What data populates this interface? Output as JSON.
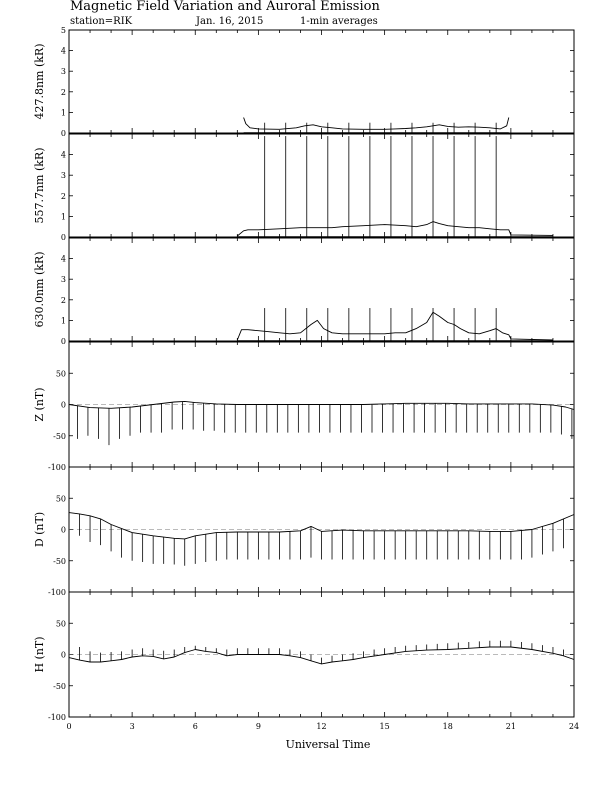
{
  "header": {
    "title": "Magnetic Field Variation and Auroral Emission",
    "station": "station=RIK",
    "date": "Jan. 16, 2015",
    "averaging": "1-min averages"
  },
  "chart_data": [
    {
      "type": "line",
      "ylabel": "427.8nm (kR)",
      "xlim": [
        0,
        24
      ],
      "ylim": [
        0,
        5
      ],
      "yticks": [
        0,
        1,
        2,
        3,
        4,
        5
      ],
      "night_window": [
        8.3,
        20.9
      ],
      "series": [
        {
          "x": [
            8.3,
            8.4,
            8.6,
            9.0,
            10.0,
            10.8,
            11.2,
            11.6,
            12.0,
            12.5,
            13.0,
            14.0,
            15.0,
            15.5,
            16.0,
            16.5,
            17.0,
            17.3,
            17.6,
            18.0,
            18.5,
            19.0,
            19.5,
            20.0,
            20.5,
            20.8,
            20.9
          ],
          "y": [
            0.75,
            0.45,
            0.25,
            0.2,
            0.18,
            0.25,
            0.35,
            0.4,
            0.3,
            0.25,
            0.2,
            0.18,
            0.18,
            0.2,
            0.22,
            0.25,
            0.3,
            0.35,
            0.4,
            0.32,
            0.28,
            0.3,
            0.28,
            0.25,
            0.2,
            0.35,
            0.75
          ]
        }
      ],
      "spikes": [
        {
          "x": 9.3,
          "y": 0.5
        },
        {
          "x": 10.3,
          "y": 0.5
        },
        {
          "x": 11.3,
          "y": 0.5
        },
        {
          "x": 12.3,
          "y": 0.5
        },
        {
          "x": 13.3,
          "y": 0.5
        },
        {
          "x": 14.3,
          "y": 0.5
        },
        {
          "x": 15.3,
          "y": 0.5
        },
        {
          "x": 16.3,
          "y": 0.5
        },
        {
          "x": 17.3,
          "y": 0.5
        },
        {
          "x": 18.3,
          "y": 0.5
        },
        {
          "x": 19.3,
          "y": 0.5
        },
        {
          "x": 20.3,
          "y": 0.5
        }
      ]
    },
    {
      "type": "line",
      "ylabel": "557.7nm (kR)",
      "xlim": [
        0,
        24
      ],
      "ylim": [
        0,
        5
      ],
      "yticks": [
        0,
        1,
        2,
        3,
        4
      ],
      "night_window": [
        8.0,
        23.0
      ],
      "series": [
        {
          "x": [
            8.0,
            8.3,
            8.5,
            9.0,
            10.0,
            11.0,
            12.0,
            12.5,
            13.0,
            14.0,
            15.0,
            16.0,
            16.5,
            17.0,
            17.3,
            17.6,
            18.0,
            18.5,
            19.0,
            19.5,
            20.0,
            20.5,
            20.9,
            21.0,
            23.0
          ],
          "y": [
            0.05,
            0.3,
            0.35,
            0.35,
            0.4,
            0.45,
            0.45,
            0.45,
            0.5,
            0.55,
            0.6,
            0.55,
            0.5,
            0.6,
            0.75,
            0.65,
            0.55,
            0.5,
            0.45,
            0.45,
            0.4,
            0.35,
            0.35,
            0.1,
            0.08
          ]
        }
      ],
      "spikes": [
        {
          "x": 9.3,
          "y": 4.9
        },
        {
          "x": 10.3,
          "y": 4.9
        },
        {
          "x": 11.3,
          "y": 4.9
        },
        {
          "x": 12.3,
          "y": 4.9
        },
        {
          "x": 13.3,
          "y": 4.9
        },
        {
          "x": 14.3,
          "y": 4.9
        },
        {
          "x": 15.3,
          "y": 4.9
        },
        {
          "x": 16.3,
          "y": 4.9
        },
        {
          "x": 17.3,
          "y": 4.9
        },
        {
          "x": 18.3,
          "y": 4.9
        },
        {
          "x": 19.3,
          "y": 4.9
        },
        {
          "x": 20.3,
          "y": 4.9
        }
      ]
    },
    {
      "type": "line",
      "ylabel": "630.0nm (kR)",
      "xlim": [
        0,
        24
      ],
      "ylim": [
        0,
        5
      ],
      "yticks": [
        0,
        1,
        2,
        3,
        4
      ],
      "night_window": [
        8.0,
        23.0
      ],
      "series": [
        {
          "x": [
            8.0,
            8.2,
            8.5,
            9.0,
            9.5,
            10.0,
            10.5,
            11.0,
            11.5,
            11.8,
            12.1,
            12.5,
            13.0,
            14.0,
            15.0,
            15.5,
            16.0,
            16.5,
            17.0,
            17.3,
            17.6,
            18.0,
            18.3,
            18.6,
            19.0,
            19.5,
            20.0,
            20.3,
            20.6,
            20.9,
            21.0,
            23.0
          ],
          "y": [
            0.05,
            0.55,
            0.55,
            0.5,
            0.45,
            0.4,
            0.35,
            0.4,
            0.8,
            1.0,
            0.6,
            0.4,
            0.35,
            0.35,
            0.35,
            0.4,
            0.4,
            0.6,
            0.9,
            1.4,
            1.2,
            0.9,
            0.8,
            0.6,
            0.4,
            0.35,
            0.5,
            0.6,
            0.4,
            0.3,
            0.1,
            0.05
          ]
        }
      ],
      "spikes": [
        {
          "x": 9.3,
          "y": 1.6
        },
        {
          "x": 10.3,
          "y": 1.6
        },
        {
          "x": 11.3,
          "y": 1.6
        },
        {
          "x": 12.3,
          "y": 1.6
        },
        {
          "x": 13.3,
          "y": 1.6
        },
        {
          "x": 14.3,
          "y": 1.6
        },
        {
          "x": 15.3,
          "y": 1.6
        },
        {
          "x": 16.3,
          "y": 1.6
        },
        {
          "x": 17.3,
          "y": 1.6
        },
        {
          "x": 18.3,
          "y": 1.6
        },
        {
          "x": 19.3,
          "y": 1.6
        },
        {
          "x": 20.3,
          "y": 1.6
        }
      ]
    },
    {
      "type": "line",
      "ylabel": "Z (nT)",
      "xlim": [
        0,
        24
      ],
      "ylim": [
        -100,
        100
      ],
      "yticks": [
        -100,
        -50,
        0,
        50
      ],
      "series": [
        {
          "x": [
            0,
            1,
            2,
            3,
            4,
            5,
            5.5,
            6,
            7,
            8,
            9,
            10,
            11,
            12,
            13,
            14,
            15,
            16,
            17,
            18,
            19,
            20,
            21,
            22,
            23,
            23.6,
            24
          ],
          "y": [
            0,
            -5,
            -6,
            -4,
            0,
            4,
            5,
            3,
            1,
            0,
            0,
            0,
            0,
            0,
            0,
            0,
            1,
            2,
            2,
            2,
            1,
            1,
            1,
            1,
            -1,
            -4,
            -8
          ]
        }
      ],
      "spikes": [
        {
          "x": 0.4,
          "y": -55
        },
        {
          "x": 0.9,
          "y": -50
        },
        {
          "x": 1.4,
          "y": -55
        },
        {
          "x": 1.9,
          "y": -65
        },
        {
          "x": 2.4,
          "y": -55
        },
        {
          "x": 2.9,
          "y": -50
        },
        {
          "x": 3.4,
          "y": -45
        },
        {
          "x": 3.9,
          "y": -45
        },
        {
          "x": 4.4,
          "y": -45
        },
        {
          "x": 4.9,
          "y": -40
        },
        {
          "x": 5.4,
          "y": -40
        },
        {
          "x": 5.9,
          "y": -40
        },
        {
          "x": 6.4,
          "y": -42
        },
        {
          "x": 6.9,
          "y": -42
        },
        {
          "x": 7.4,
          "y": -45
        },
        {
          "x": 7.9,
          "y": -45
        },
        {
          "x": 8.4,
          "y": -45
        },
        {
          "x": 8.9,
          "y": -45
        },
        {
          "x": 9.4,
          "y": -45
        },
        {
          "x": 9.9,
          "y": -45
        },
        {
          "x": 10.4,
          "y": -45
        },
        {
          "x": 10.9,
          "y": -45
        },
        {
          "x": 11.4,
          "y": -45
        },
        {
          "x": 11.9,
          "y": -45
        },
        {
          "x": 12.4,
          "y": -45
        },
        {
          "x": 12.9,
          "y": -45
        },
        {
          "x": 13.4,
          "y": -45
        },
        {
          "x": 13.9,
          "y": -45
        },
        {
          "x": 14.4,
          "y": -45
        },
        {
          "x": 14.9,
          "y": -45
        },
        {
          "x": 15.4,
          "y": -45
        },
        {
          "x": 15.9,
          "y": -45
        },
        {
          "x": 16.4,
          "y": -45
        },
        {
          "x": 16.9,
          "y": -45
        },
        {
          "x": 17.4,
          "y": -45
        },
        {
          "x": 17.9,
          "y": -45
        },
        {
          "x": 18.4,
          "y": -45
        },
        {
          "x": 18.9,
          "y": -45
        },
        {
          "x": 19.4,
          "y": -45
        },
        {
          "x": 19.9,
          "y": -45
        },
        {
          "x": 20.4,
          "y": -45
        },
        {
          "x": 20.9,
          "y": -45
        },
        {
          "x": 21.4,
          "y": -45
        },
        {
          "x": 21.9,
          "y": -45
        },
        {
          "x": 22.4,
          "y": -45
        },
        {
          "x": 22.9,
          "y": -45
        },
        {
          "x": 23.4,
          "y": -48
        },
        {
          "x": 23.9,
          "y": -55
        }
      ]
    },
    {
      "type": "line",
      "ylabel": "D (nT)",
      "xlim": [
        0,
        24
      ],
      "ylim": [
        -100,
        100
      ],
      "yticks": [
        -100,
        -50,
        0,
        50
      ],
      "series": [
        {
          "x": [
            0,
            0.5,
            1,
            1.5,
            2,
            3,
            4,
            5,
            5.5,
            6,
            7,
            8,
            9,
            10,
            11,
            11.5,
            12,
            13,
            14,
            15,
            16,
            17,
            18,
            19,
            20,
            21,
            22,
            23,
            24
          ],
          "y": [
            27,
            25,
            22,
            17,
            8,
            -5,
            -10,
            -14,
            -15,
            -10,
            -5,
            -4,
            -4,
            -4,
            -2,
            5,
            -3,
            -1,
            -2,
            -2,
            -2,
            -2,
            -2,
            -2,
            -3,
            -3,
            0,
            10,
            24
          ]
        }
      ],
      "spikes": [
        {
          "x": 0.5,
          "y": -10
        },
        {
          "x": 1.0,
          "y": -20
        },
        {
          "x": 1.5,
          "y": -25
        },
        {
          "x": 2.0,
          "y": -35
        },
        {
          "x": 2.5,
          "y": -45
        },
        {
          "x": 3.0,
          "y": -50
        },
        {
          "x": 3.5,
          "y": -52
        },
        {
          "x": 4.0,
          "y": -55
        },
        {
          "x": 4.5,
          "y": -55
        },
        {
          "x": 5.0,
          "y": -56
        },
        {
          "x": 5.5,
          "y": -58
        },
        {
          "x": 6.0,
          "y": -55
        },
        {
          "x": 6.5,
          "y": -52
        },
        {
          "x": 7.0,
          "y": -50
        },
        {
          "x": 7.5,
          "y": -48
        },
        {
          "x": 8.0,
          "y": -48
        },
        {
          "x": 8.5,
          "y": -48
        },
        {
          "x": 9.0,
          "y": -48
        },
        {
          "x": 9.5,
          "y": -48
        },
        {
          "x": 10.0,
          "y": -48
        },
        {
          "x": 10.5,
          "y": -48
        },
        {
          "x": 11.0,
          "y": -48
        },
        {
          "x": 11.5,
          "y": -45
        },
        {
          "x": 12.0,
          "y": -48
        },
        {
          "x": 12.5,
          "y": -48
        },
        {
          "x": 13.0,
          "y": -48
        },
        {
          "x": 13.5,
          "y": -48
        },
        {
          "x": 14.0,
          "y": -48
        },
        {
          "x": 14.5,
          "y": -48
        },
        {
          "x": 15.0,
          "y": -48
        },
        {
          "x": 15.5,
          "y": -48
        },
        {
          "x": 16.0,
          "y": -48
        },
        {
          "x": 16.5,
          "y": -48
        },
        {
          "x": 17.0,
          "y": -48
        },
        {
          "x": 17.5,
          "y": -48
        },
        {
          "x": 18.0,
          "y": -48
        },
        {
          "x": 18.5,
          "y": -48
        },
        {
          "x": 19.0,
          "y": -48
        },
        {
          "x": 19.5,
          "y": -48
        },
        {
          "x": 20.0,
          "y": -48
        },
        {
          "x": 20.5,
          "y": -48
        },
        {
          "x": 21.0,
          "y": -48
        },
        {
          "x": 21.5,
          "y": -48
        },
        {
          "x": 22.0,
          "y": -45
        },
        {
          "x": 22.5,
          "y": -40
        },
        {
          "x": 23.0,
          "y": -35
        },
        {
          "x": 23.5,
          "y": -30
        }
      ]
    },
    {
      "type": "line",
      "ylabel": "H (nT)",
      "xlim": [
        0,
        24
      ],
      "ylim": [
        -100,
        100
      ],
      "yticks": [
        -100,
        -50,
        0,
        50
      ],
      "series": [
        {
          "x": [
            0,
            0.5,
            1,
            1.5,
            2,
            2.5,
            3,
            3.5,
            4,
            4.5,
            5,
            5.5,
            6,
            6.5,
            7,
            7.5,
            8,
            9,
            10,
            10.5,
            11,
            11.5,
            12,
            12.5,
            13,
            13.5,
            14,
            15,
            16,
            17,
            18,
            19,
            20,
            21,
            22,
            23,
            23.5,
            24
          ],
          "y": [
            -5,
            -9,
            -12,
            -12,
            -10,
            -8,
            -4,
            -2,
            -3,
            -7,
            -4,
            3,
            8,
            5,
            3,
            -2,
            0,
            0,
            0,
            -2,
            -5,
            -10,
            -15,
            -12,
            -10,
            -8,
            -5,
            0,
            5,
            7,
            8,
            10,
            12,
            12,
            8,
            2,
            -2,
            -8
          ]
        }
      ],
      "spikes": [
        {
          "x": 0.5,
          "y": 12
        },
        {
          "x": 1.0,
          "y": 5
        },
        {
          "x": 1.5,
          "y": 3
        },
        {
          "x": 2.0,
          "y": 4
        },
        {
          "x": 2.5,
          "y": 5
        },
        {
          "x": 3.0,
          "y": 8
        },
        {
          "x": 3.5,
          "y": 10
        },
        {
          "x": 4.0,
          "y": 8
        },
        {
          "x": 4.5,
          "y": 6
        },
        {
          "x": 5.0,
          "y": 8
        },
        {
          "x": 5.5,
          "y": 12
        },
        {
          "x": 6.0,
          "y": 14
        },
        {
          "x": 6.5,
          "y": 12
        },
        {
          "x": 7.0,
          "y": 10
        },
        {
          "x": 7.5,
          "y": 8
        },
        {
          "x": 8.0,
          "y": 10
        },
        {
          "x": 8.5,
          "y": 10
        },
        {
          "x": 9.0,
          "y": 10
        },
        {
          "x": 9.5,
          "y": 10
        },
        {
          "x": 10.0,
          "y": 10
        },
        {
          "x": 10.5,
          "y": 8
        },
        {
          "x": 11.0,
          "y": 5
        },
        {
          "x": 11.5,
          "y": 0
        },
        {
          "x": 12.0,
          "y": -5
        },
        {
          "x": 12.5,
          "y": -2
        },
        {
          "x": 13.0,
          "y": 0
        },
        {
          "x": 13.5,
          "y": 2
        },
        {
          "x": 14.0,
          "y": 5
        },
        {
          "x": 14.5,
          "y": 8
        },
        {
          "x": 15.0,
          "y": 10
        },
        {
          "x": 15.5,
          "y": 12
        },
        {
          "x": 16.0,
          "y": 14
        },
        {
          "x": 16.5,
          "y": 15
        },
        {
          "x": 17.0,
          "y": 16
        },
        {
          "x": 17.5,
          "y": 17
        },
        {
          "x": 18.0,
          "y": 18
        },
        {
          "x": 18.5,
          "y": 19
        },
        {
          "x": 19.0,
          "y": 20
        },
        {
          "x": 19.5,
          "y": 21
        },
        {
          "x": 20.0,
          "y": 22
        },
        {
          "x": 20.5,
          "y": 22
        },
        {
          "x": 21.0,
          "y": 22
        },
        {
          "x": 21.5,
          "y": 20
        },
        {
          "x": 22.0,
          "y": 18
        },
        {
          "x": 22.5,
          "y": 15
        },
        {
          "x": 23.0,
          "y": 12
        },
        {
          "x": 23.5,
          "y": 8
        }
      ]
    }
  ],
  "xaxis": {
    "label": "Universal Time",
    "ticks": [
      0,
      3,
      6,
      9,
      12,
      15,
      18,
      21,
      24
    ],
    "tick_labels": [
      "0",
      "3",
      "6",
      "9",
      "12",
      "15",
      "18",
      "21",
      "24"
    ]
  }
}
